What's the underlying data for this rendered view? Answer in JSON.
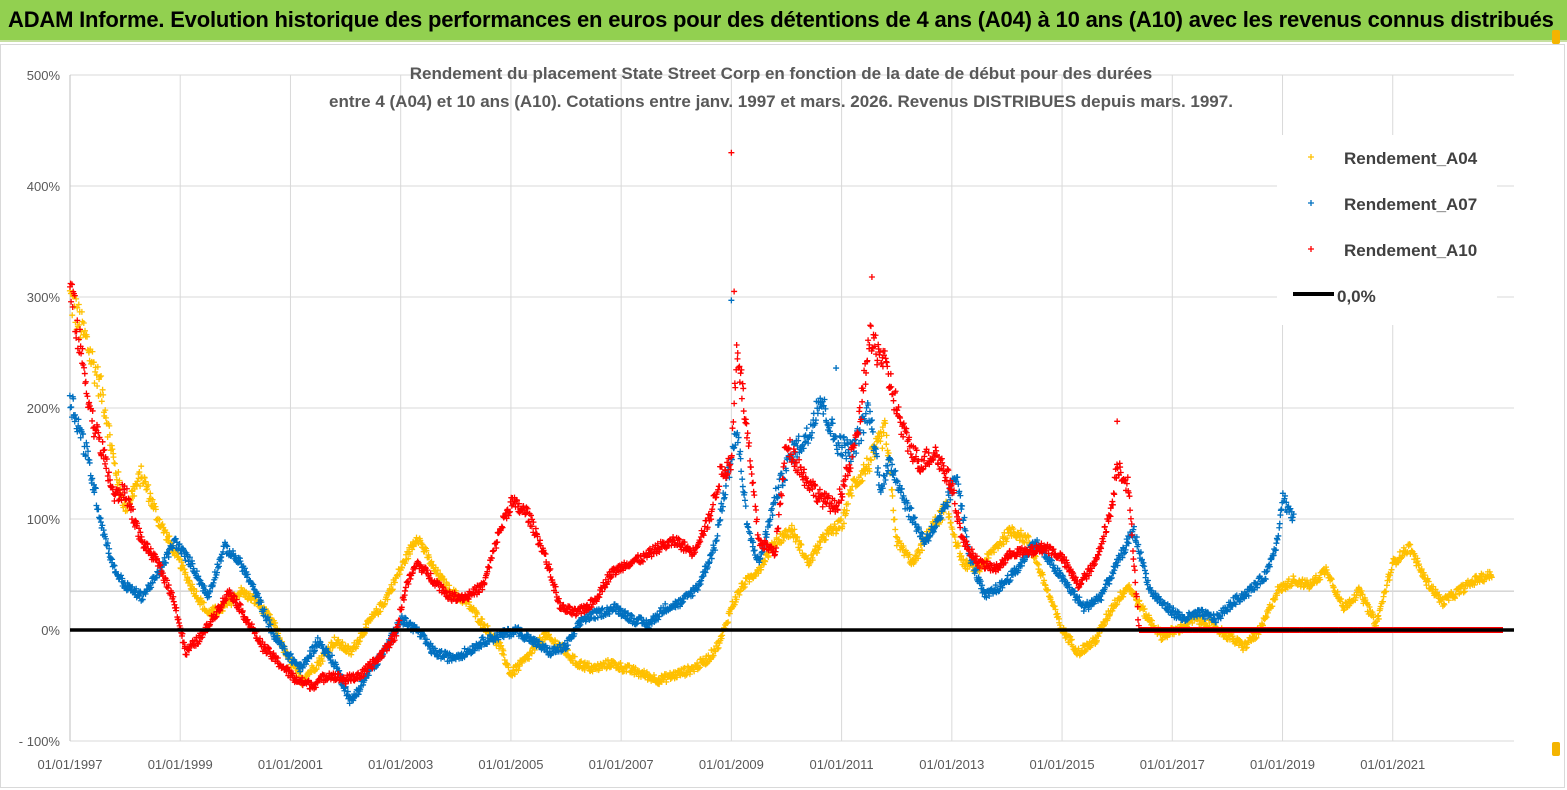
{
  "banner": {
    "title": "ADAM Informe. Evolution historique des performances en euros pour des détentions de 4 ans (A04) à 10 ans (A10) avec les revenus connus distribués"
  },
  "colors": {
    "banner_bg": "#92d050",
    "a04": "#ffc000",
    "a07": "#0070c0",
    "a10": "#ff0000",
    "zero": "#000000",
    "grid": "#d9d9d9"
  },
  "chart_data": {
    "type": "scatter",
    "title_lines": [
      "Rendement du placement State Street Corp en fonction de la date de début pour des durées",
      "entre 4 (A04) et 10 ans (A10). Cotations entre janv. 1997 et mars. 2026. Revenus DISTRIBUES depuis mars. 1997."
    ],
    "ylim": [
      -100,
      500
    ],
    "xlim": [
      1997.0,
      2023.2
    ],
    "y_ticks": [
      -100,
      0,
      100,
      200,
      300,
      400,
      500
    ],
    "y_tick_labels": [
      "- 100%",
      "0%",
      "100%",
      "200%",
      "300%",
      "400%",
      "500%"
    ],
    "x_ticks": [
      1997,
      1999,
      2001,
      2003,
      2005,
      2007,
      2009,
      2011,
      2013,
      2015,
      2017,
      2019,
      2021
    ],
    "x_tick_labels": [
      "01/01/1997",
      "01/01/1999",
      "01/01/2001",
      "01/01/2003",
      "01/01/2005",
      "01/01/2007",
      "01/01/2009",
      "01/01/2011",
      "01/01/2013",
      "01/01/2015",
      "01/01/2017",
      "01/01/2019",
      "01/01/2021"
    ],
    "legend_position": "top-right",
    "series": [
      {
        "name": "Rendement_A04",
        "color": "#ffc000",
        "marker": "+",
        "points": [
          [
            1997.0,
            300
          ],
          [
            1997.3,
            260
          ],
          [
            1997.6,
            210
          ],
          [
            1997.8,
            150
          ],
          [
            1998.0,
            110
          ],
          [
            1998.3,
            140
          ],
          [
            1998.6,
            100
          ],
          [
            1998.9,
            70
          ],
          [
            1999.2,
            40
          ],
          [
            1999.5,
            15
          ],
          [
            1999.8,
            20
          ],
          [
            2000.1,
            35
          ],
          [
            2000.4,
            25
          ],
          [
            2000.7,
            5
          ],
          [
            2000.9,
            -20
          ],
          [
            2001.2,
            -45
          ],
          [
            2001.5,
            -30
          ],
          [
            2001.8,
            -10
          ],
          [
            2002.1,
            -20
          ],
          [
            2002.4,
            5
          ],
          [
            2002.7,
            25
          ],
          [
            2003.0,
            55
          ],
          [
            2003.3,
            85
          ],
          [
            2003.6,
            55
          ],
          [
            2003.9,
            35
          ],
          [
            2004.2,
            25
          ],
          [
            2004.5,
            5
          ],
          [
            2004.8,
            -15
          ],
          [
            2005.0,
            -40
          ],
          [
            2005.3,
            -25
          ],
          [
            2005.6,
            -5
          ],
          [
            2005.9,
            -15
          ],
          [
            2006.2,
            -30
          ],
          [
            2006.5,
            -35
          ],
          [
            2006.8,
            -30
          ],
          [
            2007.1,
            -35
          ],
          [
            2007.4,
            -40
          ],
          [
            2007.7,
            -45
          ],
          [
            2008.0,
            -40
          ],
          [
            2008.3,
            -35
          ],
          [
            2008.6,
            -25
          ],
          [
            2008.8,
            -10
          ],
          [
            2009.0,
            20
          ],
          [
            2009.2,
            40
          ],
          [
            2009.5,
            55
          ],
          [
            2009.8,
            80
          ],
          [
            2010.1,
            90
          ],
          [
            2010.4,
            60
          ],
          [
            2010.7,
            85
          ],
          [
            2011.0,
            95
          ],
          [
            2011.2,
            130
          ],
          [
            2011.5,
            150
          ],
          [
            2011.8,
            180
          ],
          [
            2012.0,
            80
          ],
          [
            2012.3,
            60
          ],
          [
            2012.6,
            90
          ],
          [
            2012.9,
            110
          ],
          [
            2013.2,
            60
          ],
          [
            2013.5,
            55
          ],
          [
            2013.8,
            75
          ],
          [
            2014.1,
            90
          ],
          [
            2014.4,
            80
          ],
          [
            2014.7,
            40
          ],
          [
            2015.0,
            0
          ],
          [
            2015.3,
            -20
          ],
          [
            2015.6,
            -10
          ],
          [
            2015.9,
            20
          ],
          [
            2016.2,
            40
          ],
          [
            2016.5,
            15
          ],
          [
            2016.8,
            -5
          ],
          [
            2017.1,
            0
          ],
          [
            2017.4,
            10
          ],
          [
            2017.7,
            5
          ],
          [
            2018.0,
            -5
          ],
          [
            2018.3,
            -15
          ],
          [
            2018.6,
            0
          ],
          [
            2018.9,
            35
          ],
          [
            2019.2,
            45
          ],
          [
            2019.5,
            40
          ],
          [
            2019.8,
            55
          ],
          [
            2020.1,
            20
          ],
          [
            2020.4,
            35
          ],
          [
            2020.7,
            5
          ],
          [
            2021.0,
            60
          ],
          [
            2021.3,
            75
          ],
          [
            2021.6,
            45
          ],
          [
            2021.9,
            25
          ],
          [
            2022.2,
            35
          ],
          [
            2022.5,
            45
          ],
          [
            2022.8,
            50
          ]
        ]
      },
      {
        "name": "Rendement_A07",
        "color": "#0070c0",
        "marker": "+",
        "points": [
          [
            1997.0,
            210
          ],
          [
            1997.3,
            160
          ],
          [
            1997.6,
            90
          ],
          [
            1997.8,
            55
          ],
          [
            1998.0,
            40
          ],
          [
            1998.3,
            30
          ],
          [
            1998.6,
            50
          ],
          [
            1998.9,
            80
          ],
          [
            1999.2,
            60
          ],
          [
            1999.5,
            30
          ],
          [
            1999.8,
            75
          ],
          [
            2000.1,
            60
          ],
          [
            2000.4,
            30
          ],
          [
            2000.7,
            -5
          ],
          [
            2001.0,
            -25
          ],
          [
            2001.2,
            -35
          ],
          [
            2001.5,
            -10
          ],
          [
            2001.8,
            -30
          ],
          [
            2002.1,
            -65
          ],
          [
            2002.4,
            -40
          ],
          [
            2002.7,
            -20
          ],
          [
            2003.0,
            10
          ],
          [
            2003.3,
            0
          ],
          [
            2003.6,
            -20
          ],
          [
            2003.9,
            -25
          ],
          [
            2004.2,
            -20
          ],
          [
            2004.5,
            -10
          ],
          [
            2004.8,
            -5
          ],
          [
            2005.1,
            0
          ],
          [
            2005.4,
            -10
          ],
          [
            2005.7,
            -20
          ],
          [
            2006.0,
            -15
          ],
          [
            2006.3,
            10
          ],
          [
            2006.6,
            15
          ],
          [
            2006.9,
            20
          ],
          [
            2007.2,
            10
          ],
          [
            2007.5,
            5
          ],
          [
            2007.8,
            20
          ],
          [
            2008.1,
            25
          ],
          [
            2008.4,
            40
          ],
          [
            2008.7,
            75
          ],
          [
            2008.9,
            130
          ],
          [
            2009.1,
            180
          ],
          [
            2009.3,
            90
          ],
          [
            2009.5,
            60
          ],
          [
            2009.8,
            120
          ],
          [
            2010.1,
            160
          ],
          [
            2010.4,
            175
          ],
          [
            2010.6,
            210
          ],
          [
            2010.9,
            170
          ],
          [
            2011.2,
            160
          ],
          [
            2011.5,
            200
          ],
          [
            2011.7,
            130
          ],
          [
            2011.9,
            150
          ],
          [
            2012.2,
            110
          ],
          [
            2012.5,
            80
          ],
          [
            2012.8,
            100
          ],
          [
            2013.1,
            140
          ],
          [
            2013.3,
            70
          ],
          [
            2013.6,
            30
          ],
          [
            2013.9,
            40
          ],
          [
            2014.2,
            55
          ],
          [
            2014.5,
            80
          ],
          [
            2014.8,
            60
          ],
          [
            2015.1,
            40
          ],
          [
            2015.4,
            20
          ],
          [
            2015.7,
            30
          ],
          [
            2016.0,
            60
          ],
          [
            2016.3,
            90
          ],
          [
            2016.6,
            35
          ],
          [
            2016.9,
            20
          ],
          [
            2017.2,
            10
          ],
          [
            2017.5,
            15
          ],
          [
            2017.8,
            10
          ],
          [
            2018.1,
            25
          ],
          [
            2018.4,
            35
          ],
          [
            2018.7,
            50
          ],
          [
            2018.9,
            80
          ],
          [
            2019.0,
            120
          ],
          [
            2019.2,
            100
          ]
        ]
      },
      {
        "name": "Rendement_A10",
        "color": "#ff0000",
        "marker": "+",
        "points": [
          [
            1997.0,
            310
          ],
          [
            1997.2,
            250
          ],
          [
            1997.4,
            190
          ],
          [
            1997.6,
            160
          ],
          [
            1997.8,
            120
          ],
          [
            1998.0,
            125
          ],
          [
            1998.3,
            80
          ],
          [
            1998.6,
            60
          ],
          [
            1998.9,
            25
          ],
          [
            1999.1,
            -20
          ],
          [
            1999.4,
            -5
          ],
          [
            1999.7,
            20
          ],
          [
            1999.9,
            35
          ],
          [
            2000.2,
            10
          ],
          [
            2000.5,
            -15
          ],
          [
            2000.8,
            -30
          ],
          [
            2001.1,
            -45
          ],
          [
            2001.4,
            -50
          ],
          [
            2001.7,
            -40
          ],
          [
            2002.0,
            -45
          ],
          [
            2002.3,
            -40
          ],
          [
            2002.6,
            -25
          ],
          [
            2002.9,
            -5
          ],
          [
            2003.1,
            40
          ],
          [
            2003.3,
            60
          ],
          [
            2003.6,
            45
          ],
          [
            2003.9,
            30
          ],
          [
            2004.2,
            30
          ],
          [
            2004.5,
            40
          ],
          [
            2004.8,
            90
          ],
          [
            2005.0,
            115
          ],
          [
            2005.3,
            105
          ],
          [
            2005.6,
            70
          ],
          [
            2005.9,
            20
          ],
          [
            2006.2,
            15
          ],
          [
            2006.5,
            25
          ],
          [
            2006.8,
            50
          ],
          [
            2007.1,
            60
          ],
          [
            2007.4,
            65
          ],
          [
            2007.7,
            75
          ],
          [
            2008.0,
            80
          ],
          [
            2008.3,
            70
          ],
          [
            2008.6,
            100
          ],
          [
            2008.8,
            140
          ],
          [
            2009.0,
            150
          ],
          [
            2009.1,
            260
          ],
          [
            2009.3,
            170
          ],
          [
            2009.5,
            80
          ],
          [
            2009.8,
            70
          ],
          [
            2010.0,
            170
          ],
          [
            2010.3,
            140
          ],
          [
            2010.6,
            120
          ],
          [
            2010.9,
            110
          ],
          [
            2011.1,
            140
          ],
          [
            2011.3,
            180
          ],
          [
            2011.5,
            260
          ],
          [
            2011.7,
            250
          ],
          [
            2011.9,
            220
          ],
          [
            2012.1,
            180
          ],
          [
            2012.4,
            150
          ],
          [
            2012.7,
            160
          ],
          [
            2013.0,
            130
          ],
          [
            2013.2,
            80
          ],
          [
            2013.5,
            60
          ],
          [
            2013.8,
            55
          ],
          [
            2014.1,
            70
          ],
          [
            2014.4,
            70
          ],
          [
            2014.7,
            75
          ],
          [
            2015.0,
            65
          ],
          [
            2015.3,
            40
          ],
          [
            2015.6,
            60
          ],
          [
            2015.9,
            110
          ],
          [
            2016.0,
            150
          ],
          [
            2016.2,
            130
          ],
          [
            2016.4,
            0
          ],
          [
            2017.0,
            0
          ],
          [
            2018.0,
            0
          ],
          [
            2019.0,
            0
          ],
          [
            2020.0,
            0
          ],
          [
            2021.0,
            0
          ],
          [
            2022.0,
            0
          ],
          [
            2023.0,
            0
          ]
        ],
        "flat_zero_from": 2016.4
      }
    ],
    "zero_line": {
      "name": "0,0%",
      "value": 0,
      "color": "#000000"
    },
    "legend_labels": [
      "Rendement_A04",
      "Rendement_A07",
      "Rendement_A10",
      "0,0%"
    ]
  }
}
